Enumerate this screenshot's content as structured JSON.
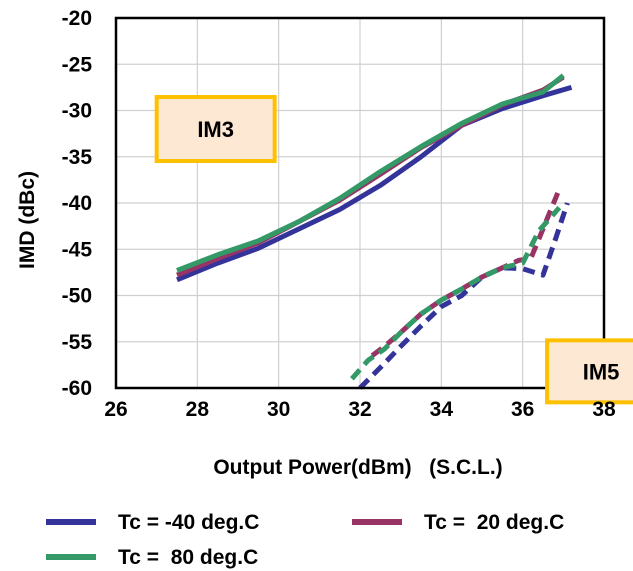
{
  "chart_data": {
    "type": "line",
    "xlabel": "Output Power(dBm)   (S.C.L.)",
    "ylabel": "IMD (dBc)",
    "xlim": [
      26,
      38
    ],
    "ylim": [
      -60,
      -20
    ],
    "xticks": [
      "26",
      "28",
      "30",
      "32",
      "34",
      "36",
      "38"
    ],
    "yticks": [
      "-20",
      "-25",
      "-30",
      "-35",
      "-40",
      "-45",
      "-50",
      "-55",
      "-60"
    ],
    "grid": true,
    "legend_position": "bottom",
    "annotations": [
      {
        "text": "IM3",
        "x": 27.0,
        "y": -32.0
      },
      {
        "text": "IM5",
        "x": 36.6,
        "y": -58.2
      }
    ],
    "series": [
      {
        "name": "Tc = -40 deg.C",
        "color": "#33339a",
        "group": "IM3",
        "style": "solid",
        "x": [
          27.5,
          28.5,
          29.5,
          30.5,
          31.5,
          32.5,
          33.5,
          34.5,
          35.5,
          36.5,
          37.2
        ],
        "y": [
          -48.3,
          -46.5,
          -44.9,
          -42.8,
          -40.7,
          -38.1,
          -35.0,
          -31.6,
          -29.8,
          -28.4,
          -27.5
        ]
      },
      {
        "name": "Tc =  20 deg.C",
        "color": "#993366",
        "group": "IM3",
        "style": "solid",
        "x": [
          27.5,
          28.5,
          29.5,
          30.5,
          31.5,
          32.5,
          33.5,
          34.5,
          35.5,
          36.5,
          37.0
        ],
        "y": [
          -47.8,
          -46.0,
          -44.3,
          -42.0,
          -39.7,
          -36.9,
          -34.0,
          -31.6,
          -29.4,
          -27.8,
          -26.4
        ]
      },
      {
        "name": "Tc =  80 deg.C",
        "color": "#339966",
        "group": "IM3",
        "style": "solid",
        "x": [
          27.5,
          28.5,
          29.5,
          30.5,
          31.5,
          32.5,
          33.5,
          34.5,
          35.5,
          36.5,
          37.0
        ],
        "y": [
          -47.3,
          -45.6,
          -44.1,
          -42.0,
          -39.5,
          -36.6,
          -33.9,
          -31.4,
          -29.3,
          -28.0,
          -26.2
        ]
      },
      {
        "name": "Tc = -40 deg.C",
        "color": "#33339a",
        "group": "IM5",
        "style": "dashed",
        "x": [
          32.0,
          32.5,
          33.0,
          33.5,
          34.0,
          34.5,
          35.0,
          35.5,
          36.0,
          36.5,
          36.8,
          37.1
        ],
        "y": [
          -60.0,
          -57.8,
          -55.5,
          -53.3,
          -51.2,
          -50.0,
          -48.0,
          -47.0,
          -47.1,
          -47.8,
          -44.0,
          -40.0
        ]
      },
      {
        "name": "Tc =  20 deg.C",
        "color": "#993366",
        "group": "IM5",
        "style": "dashed",
        "x": [
          32.3,
          32.6,
          33.0,
          33.5,
          34.0,
          34.5,
          35.0,
          35.5,
          35.9,
          36.2,
          36.5,
          36.9
        ],
        "y": [
          -56.5,
          -55.5,
          -54.0,
          -52.0,
          -50.5,
          -49.3,
          -48.0,
          -47.0,
          -46.2,
          -46.0,
          -42.8,
          -38.5
        ]
      },
      {
        "name": "Tc =  80 deg.C",
        "color": "#339966",
        "group": "IM5",
        "style": "dashed",
        "x": [
          31.8,
          32.2,
          32.6,
          33.0,
          33.5,
          34.0,
          34.5,
          35.0,
          35.5,
          36.0,
          36.4,
          36.9
        ],
        "y": [
          -59.0,
          -57.0,
          -55.8,
          -54.0,
          -52.0,
          -50.5,
          -49.3,
          -48.0,
          -47.0,
          -46.5,
          -43.0,
          -40.5
        ]
      }
    ]
  }
}
